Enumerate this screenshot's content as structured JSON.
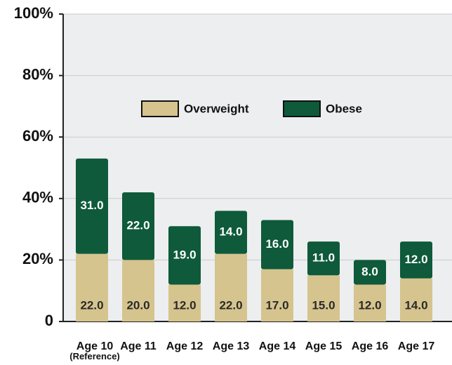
{
  "chart_data": {
    "type": "stacked_bar",
    "categories": [
      "Age 10\n(Reference)",
      "Age 11",
      "Age 12",
      "Age 13",
      "Age 14",
      "Age 15",
      "Age 16",
      "Age 17"
    ],
    "series": [
      {
        "name": "Overweight",
        "color": "#d6c48e",
        "values": [
          22,
          20,
          12,
          22,
          17,
          15,
          12,
          14
        ],
        "value_labels": [
          "22.0",
          "20.0",
          "12.0",
          "22.0",
          "17.0",
          "15.0",
          "12.0",
          "14.0"
        ]
      },
      {
        "name": "Obese",
        "color": "#0e5a3a",
        "values": [
          31,
          22,
          19,
          14,
          16,
          11,
          8,
          12
        ],
        "value_labels": [
          "31.0",
          "22.0",
          "19.0",
          "14.0",
          "16.0",
          "11.0",
          "8.0",
          "12.0"
        ]
      }
    ],
    "ylim": [
      0,
      100
    ],
    "yticks": [
      0,
      {
        "value": 20,
        "label": "20%"
      },
      {
        "value": 40,
        "label": "40%"
      },
      {
        "value": 60,
        "label": "60%"
      },
      {
        "value": 80,
        "label": "80%"
      },
      {
        "value": 100,
        "label": "100%"
      }
    ],
    "grid": true
  }
}
